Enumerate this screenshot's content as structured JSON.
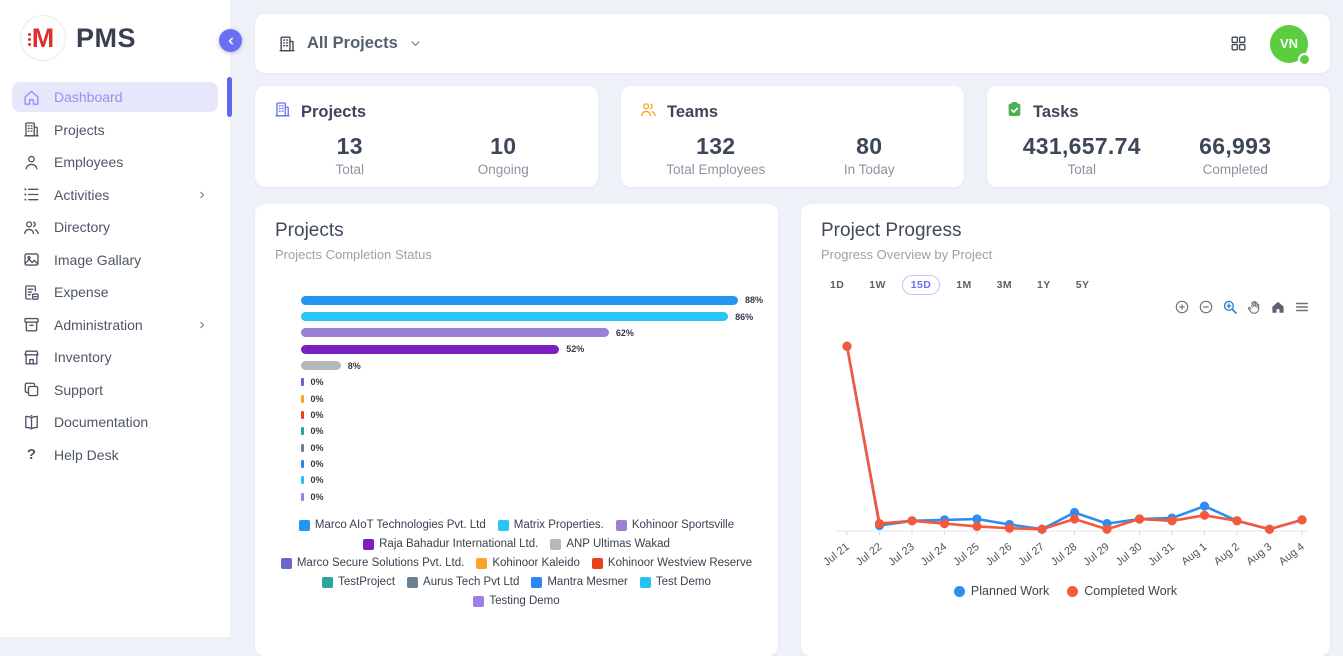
{
  "app": {
    "name": "PMS",
    "logo_letter": "M"
  },
  "topbar": {
    "project_filter": "All Projects",
    "avatar_initials": "VN"
  },
  "sidebar": {
    "items": [
      {
        "label": "Dashboard",
        "icon": "home-icon",
        "active": true,
        "has_children": false
      },
      {
        "label": "Projects",
        "icon": "building-icon",
        "active": false,
        "has_children": false
      },
      {
        "label": "Employees",
        "icon": "person-icon",
        "active": false,
        "has_children": false
      },
      {
        "label": "Activities",
        "icon": "list-icon",
        "active": false,
        "has_children": true
      },
      {
        "label": "Directory",
        "icon": "people-icon",
        "active": false,
        "has_children": false
      },
      {
        "label": "Image Gallary",
        "icon": "image-icon",
        "active": false,
        "has_children": false
      },
      {
        "label": "Expense",
        "icon": "receipt-icon",
        "active": false,
        "has_children": false
      },
      {
        "label": "Administration",
        "icon": "archive-icon",
        "active": false,
        "has_children": true
      },
      {
        "label": "Inventory",
        "icon": "store-icon",
        "active": false,
        "has_children": false
      },
      {
        "label": "Support",
        "icon": "copy-icon",
        "active": false,
        "has_children": false
      },
      {
        "label": "Documentation",
        "icon": "book-icon",
        "active": false,
        "has_children": false
      },
      {
        "label": "Help Desk",
        "icon": "help-icon",
        "active": false,
        "has_children": false
      }
    ]
  },
  "stat_cards": [
    {
      "title": "Projects",
      "icon": "building-icon",
      "icon_color": "#6b6ff0",
      "metrics": [
        {
          "value": "13",
          "label": "Total"
        },
        {
          "value": "10",
          "label": "Ongoing"
        }
      ]
    },
    {
      "title": "Teams",
      "icon": "people-icon",
      "icon_color": "#f5a623",
      "metrics": [
        {
          "value": "132",
          "label": "Total Employees"
        },
        {
          "value": "80",
          "label": "In Today"
        }
      ]
    },
    {
      "title": "Tasks",
      "icon": "task-icon",
      "icon_color": "#4caf50",
      "metrics": [
        {
          "value": "431,657.74",
          "label": "Total"
        },
        {
          "value": "66,993",
          "label": "Completed"
        }
      ]
    }
  ],
  "progress_panel": {
    "timeframes": [
      "1D",
      "1W",
      "15D",
      "1M",
      "3M",
      "1Y",
      "5Y"
    ],
    "selected_timeframe": "15D",
    "toolbar_icons": [
      "zoom-in",
      "zoom-out",
      "selection-zoom",
      "pan",
      "home",
      "menu"
    ]
  },
  "chart_data": [
    {
      "type": "bar",
      "orientation": "horizontal",
      "title": "Projects",
      "subtitle": "Projects Completion Status",
      "value_format": "percent",
      "xlim": [
        0,
        100
      ],
      "legend_position": "bottom",
      "categories": [
        "Marco AIoT Technologies Pvt. Ltd",
        "Matrix Properties.",
        "Kohinoor Sportsville",
        "Raja Bahadur International Ltd.",
        "ANP Ultimas Wakad",
        "Marco Secure Solutions Pvt. Ltd.",
        "Kohinoor Kaleido",
        "Kohinoor Westview Reserve",
        "TestProject",
        "Aurus Tech Pvt Ltd",
        "Mantra Mesmer",
        "Test Demo",
        "Testing Demo"
      ],
      "values": [
        88,
        86,
        62,
        52,
        8,
        0,
        0,
        0,
        0,
        0,
        0,
        0,
        0
      ],
      "colors": [
        "#2196f3",
        "#29c5f6",
        "#9b7fd4",
        "#7c1fc1",
        "#b5b8bf",
        "#6a64cf",
        "#fca426",
        "#e8431c",
        "#2aa79c",
        "#6e7f92",
        "#2a87f0",
        "#25c3f2",
        "#a07ee8"
      ]
    },
    {
      "type": "line",
      "title": "Project Progress",
      "subtitle": "Progress Overview by Project",
      "x": [
        "Jul 21",
        "Jul 22",
        "Jul 23",
        "Jul 24",
        "Jul 25",
        "Jul 26",
        "Jul 27",
        "Jul 28",
        "Jul 29",
        "Jul 30",
        "Jul 31",
        "Aug 1",
        "Aug 2",
        "Aug 3",
        "Aug 4"
      ],
      "series": [
        {
          "name": "Planned Work",
          "color": "#2b8ff2",
          "values": [
            100,
            3,
            5.5,
            6,
            6.5,
            3.5,
            1,
            10,
            4,
            6.5,
            7,
            13.5,
            5.5,
            1,
            6
          ]
        },
        {
          "name": "Completed Work",
          "color": "#f4593c",
          "values": [
            100,
            4,
            5.5,
            4,
            2.5,
            1.5,
            1,
            6.5,
            1,
            6.5,
            5.5,
            8.5,
            5.5,
            1,
            6
          ]
        }
      ],
      "ylim": [
        0,
        105
      ],
      "grid": false,
      "legend_position": "bottom"
    }
  ],
  "colors": {
    "accent": "#6168ee",
    "sidebar_active_bg": "#e7e7fc",
    "avatar_bg": "#5bcd3e",
    "page_bg": "#eff1f9",
    "logo_red": "#df3030"
  }
}
